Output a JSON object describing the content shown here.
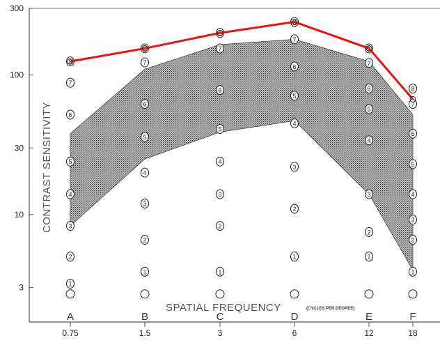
{
  "chart_data": {
    "type": "line",
    "xlabel": "SPATIAL FREQUENCY",
    "xlabel_unit": "(CYCLES PER DEGREE)",
    "ylabel": "CONTRAST SENSITIVITY",
    "y_scale": "log",
    "ylim": [
      1.7,
      300
    ],
    "y_ticks": [
      3,
      10,
      30,
      100,
      300
    ],
    "y_tick_labels": [
      "3",
      "10",
      "30",
      "100",
      "300"
    ],
    "x_scale": "log",
    "x_ticks": [
      0.75,
      1.5,
      3,
      6,
      12,
      18
    ],
    "x_tick_labels": [
      "0.75",
      "1.5",
      "3",
      "6",
      "12",
      "18"
    ],
    "letters": [
      "A",
      "B",
      "C",
      "D",
      "E",
      "F"
    ],
    "series": [
      {
        "x": [
          0.75,
          1.5,
          3,
          6,
          12,
          18
        ],
        "y": [
          125,
          155,
          200,
          240,
          155,
          67
        ],
        "color": "#ee1111"
      }
    ],
    "band": {
      "x": [
        0.75,
        1.5,
        3,
        6,
        12,
        18
      ],
      "upper": [
        38,
        110,
        165,
        180,
        125,
        52
      ],
      "lower": [
        8.3,
        25,
        39,
        47,
        14,
        4
      ],
      "fill": "#7a7a7a"
    },
    "row_markers": [
      {
        "x": 0.75,
        "y": [
          2.7,
          3.2,
          5,
          8.3,
          14,
          24,
          52,
          88,
          125
        ],
        "labels": [
          "0",
          "1",
          "2",
          "3",
          "4",
          "5",
          "6",
          "7",
          "8"
        ]
      },
      {
        "x": 1.5,
        "y": [
          2.7,
          3.9,
          6.6,
          12,
          20,
          36,
          62,
          123,
          155
        ],
        "labels": [
          "0",
          "1",
          "2",
          "3",
          "4",
          "5",
          "6",
          "7",
          "8"
        ]
      },
      {
        "x": 3,
        "y": [
          2.7,
          3.9,
          8.3,
          14,
          24,
          41,
          78,
          155,
          200
        ],
        "labels": [
          "0",
          "1",
          "2",
          "3",
          "4",
          "5",
          "6",
          "7",
          "8"
        ]
      },
      {
        "x": 6,
        "y": [
          2.7,
          5,
          11,
          22,
          45,
          71,
          115,
          180,
          240
        ],
        "labels": [
          "0",
          "1",
          "2",
          "3",
          "4",
          "5",
          "6",
          "7",
          "8"
        ]
      },
      {
        "x": 12,
        "y": [
          2.7,
          5,
          7.5,
          14,
          34,
          57,
          80,
          122,
          155
        ],
        "labels": [
          "0",
          "1",
          "2",
          "3",
          "4",
          "5",
          "6",
          "7",
          "8"
        ]
      },
      {
        "x": 18,
        "y": [
          2.7,
          3.9,
          6.6,
          9.2,
          14,
          23,
          38,
          62,
          80
        ],
        "labels": [
          "0",
          "1",
          "2",
          "3",
          "4",
          "5",
          "6",
          "7",
          "8"
        ]
      }
    ]
  }
}
